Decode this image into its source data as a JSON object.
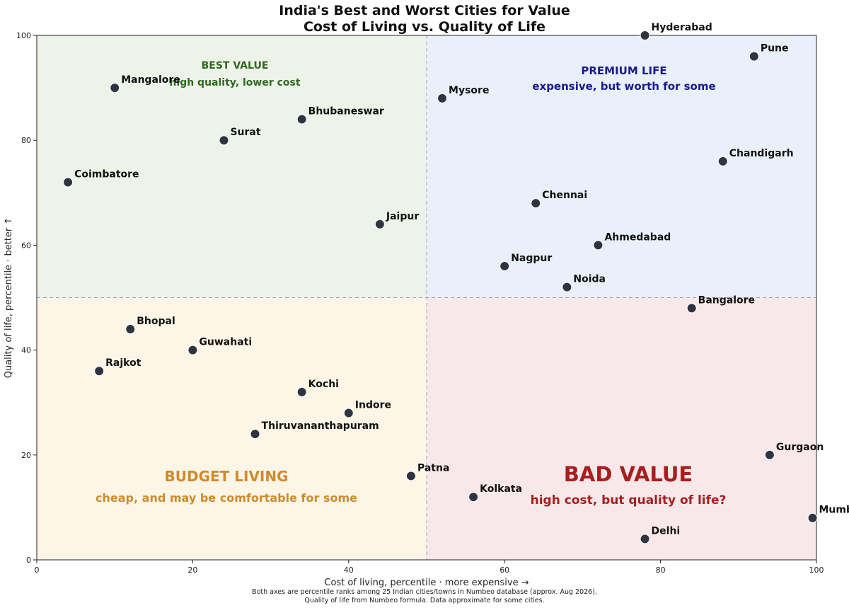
{
  "chart_data": {
    "type": "scatter",
    "title": "India's Best and Worst Cities for Value",
    "subtitle": "Cost of Living vs. Quality of Life",
    "xlabel": "Cost of living, percentile  ·  more expensive →",
    "ylabel": "Quality of life, percentile  ·  better ↑",
    "xlim": [
      0,
      100
    ],
    "ylim": [
      0,
      100
    ],
    "xticks": [
      "0",
      "20",
      "40",
      "60",
      "80",
      "100"
    ],
    "yticks": [
      "0",
      "20",
      "40",
      "60",
      "80",
      "100"
    ],
    "divider": {
      "x": 50,
      "y": 50
    },
    "grid": false,
    "point_color": "#2e3440",
    "footnote": [
      "Both axes are percentile ranks among 25 Indian cities/towns in Numbeo database (approx. Aug 2026),",
      "Quality of life from Numbeo formula. Data approximate for some cities."
    ],
    "quadrants": [
      {
        "id": "best-value",
        "title": "BEST VALUE",
        "subtitle": "high quality, lower cost",
        "color": "#2d6a1f",
        "fill": "#eef3ea"
      },
      {
        "id": "premium-life",
        "title": "PREMIUM LIFE",
        "subtitle": "expensive, but worth for some",
        "color": "#1a1a8c",
        "fill": "#e9f0fa"
      },
      {
        "id": "budget-living",
        "title": "BUDGET LIVING",
        "subtitle": "cheap, and may be comfortable for some",
        "color": "#cf8a2c",
        "fill": "#fdf6e7"
      },
      {
        "id": "bad-value",
        "title": "BAD VALUE",
        "subtitle": "high cost, but quality of life?",
        "color": "#a81e1e",
        "fill": "#f9e8ea"
      }
    ],
    "points": [
      {
        "name": "Hyderabad",
        "x": 78,
        "y": 100
      },
      {
        "name": "Pune",
        "x": 92,
        "y": 96
      },
      {
        "name": "Mangalore",
        "x": 10,
        "y": 90
      },
      {
        "name": "Mysore",
        "x": 52,
        "y": 88
      },
      {
        "name": "Bhubaneswar",
        "x": 34,
        "y": 84
      },
      {
        "name": "Surat",
        "x": 24,
        "y": 80
      },
      {
        "name": "Chandigarh",
        "x": 88,
        "y": 76
      },
      {
        "name": "Coimbatore",
        "x": 4,
        "y": 72
      },
      {
        "name": "Chennai",
        "x": 64,
        "y": 68
      },
      {
        "name": "Jaipur",
        "x": 44,
        "y": 64
      },
      {
        "name": "Ahmedabad",
        "x": 72,
        "y": 60
      },
      {
        "name": "Nagpur",
        "x": 60,
        "y": 56
      },
      {
        "name": "Noida",
        "x": 68,
        "y": 52
      },
      {
        "name": "Bangalore",
        "x": 84,
        "y": 48
      },
      {
        "name": "Bhopal",
        "x": 12,
        "y": 44
      },
      {
        "name": "Guwahati",
        "x": 20,
        "y": 40
      },
      {
        "name": "Rajkot",
        "x": 8,
        "y": 36
      },
      {
        "name": "Kochi",
        "x": 34,
        "y": 32
      },
      {
        "name": "Indore",
        "x": 40,
        "y": 28
      },
      {
        "name": "Thiruvananthapuram",
        "x": 28,
        "y": 24
      },
      {
        "name": "Gurgaon",
        "x": 94,
        "y": 20
      },
      {
        "name": "Patna",
        "x": 48,
        "y": 16
      },
      {
        "name": "Kolkata",
        "x": 56,
        "y": 12
      },
      {
        "name": "Mumbai",
        "x": 99.5,
        "y": 8
      },
      {
        "name": "Delhi",
        "x": 78,
        "y": 4
      }
    ]
  }
}
